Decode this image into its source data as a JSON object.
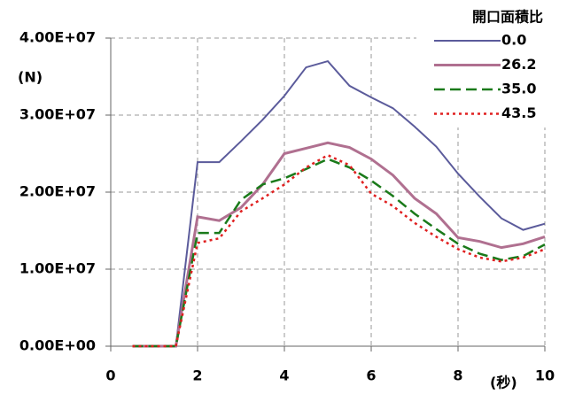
{
  "chart_data": {
    "type": "line",
    "y_label": "(N)",
    "x_label": "(秒)",
    "legend_title": "開口面積比",
    "x": [
      0.5,
      1,
      1.5,
      2,
      2.5,
      3,
      3.5,
      4,
      4.5,
      5,
      5.5,
      6,
      6.5,
      7,
      7.5,
      8,
      8.5,
      9,
      9.5,
      10
    ],
    "series": [
      {
        "name": "0.0",
        "color": "#5b5b9b",
        "dash": "solid",
        "values": [
          0,
          0,
          0,
          23900000.0,
          23900000.0,
          26600000.0,
          29400000.0,
          32500000.0,
          36200000.0,
          37000000.0,
          33800000.0,
          32300000.0,
          30900000.0,
          28500000.0,
          25900000.0,
          22400000.0,
          19400000.0,
          16600000.0,
          15100000.0,
          15900000.0
        ]
      },
      {
        "name": "26.2",
        "color": "#b07090",
        "dash": "solid",
        "values": [
          0,
          0,
          0,
          16800000.0,
          16300000.0,
          18000000.0,
          21000000.0,
          25000000.0,
          25700000.0,
          26400000.0,
          25800000.0,
          24300000.0,
          22200000.0,
          19200000.0,
          17200000.0,
          14100000.0,
          13600000.0,
          12800000.0,
          13300000.0,
          14200000.0
        ]
      },
      {
        "name": "35.0",
        "color": "#1a7a1a",
        "dash": "dashed",
        "values": [
          0,
          0,
          0,
          14700000.0,
          14700000.0,
          19000000.0,
          21000000.0,
          21800000.0,
          23000000.0,
          24300000.0,
          23200000.0,
          21500000.0,
          19500000.0,
          17200000.0,
          15200000.0,
          13300000.0,
          12000000.0,
          11200000.0,
          11700000.0,
          13200000.0
        ]
      },
      {
        "name": "43.5",
        "color": "#e02020",
        "dash": "dotted",
        "values": [
          0,
          0,
          0,
          13400000.0,
          14000000.0,
          17500000.0,
          19200000.0,
          21000000.0,
          23200000.0,
          24800000.0,
          23500000.0,
          19800000.0,
          18200000.0,
          16000000.0,
          14200000.0,
          12600000.0,
          11500000.0,
          11000000.0,
          11500000.0,
          12600000.0
        ]
      }
    ],
    "xlim": [
      0,
      10
    ],
    "xticks": [
      0,
      2,
      4,
      6,
      8,
      10
    ],
    "ylim": [
      0,
      40000000.0
    ],
    "yticks": [
      {
        "value": 0,
        "label": "0.00E+00"
      },
      {
        "value": 10000000.0,
        "label": "1.00E+07"
      },
      {
        "value": 20000000.0,
        "label": "2.00E+07"
      },
      {
        "value": 30000000.0,
        "label": "3.00E+07"
      },
      {
        "value": 40000000.0,
        "label": "4.00E+07"
      }
    ],
    "grid": true,
    "legend": "top-right"
  }
}
